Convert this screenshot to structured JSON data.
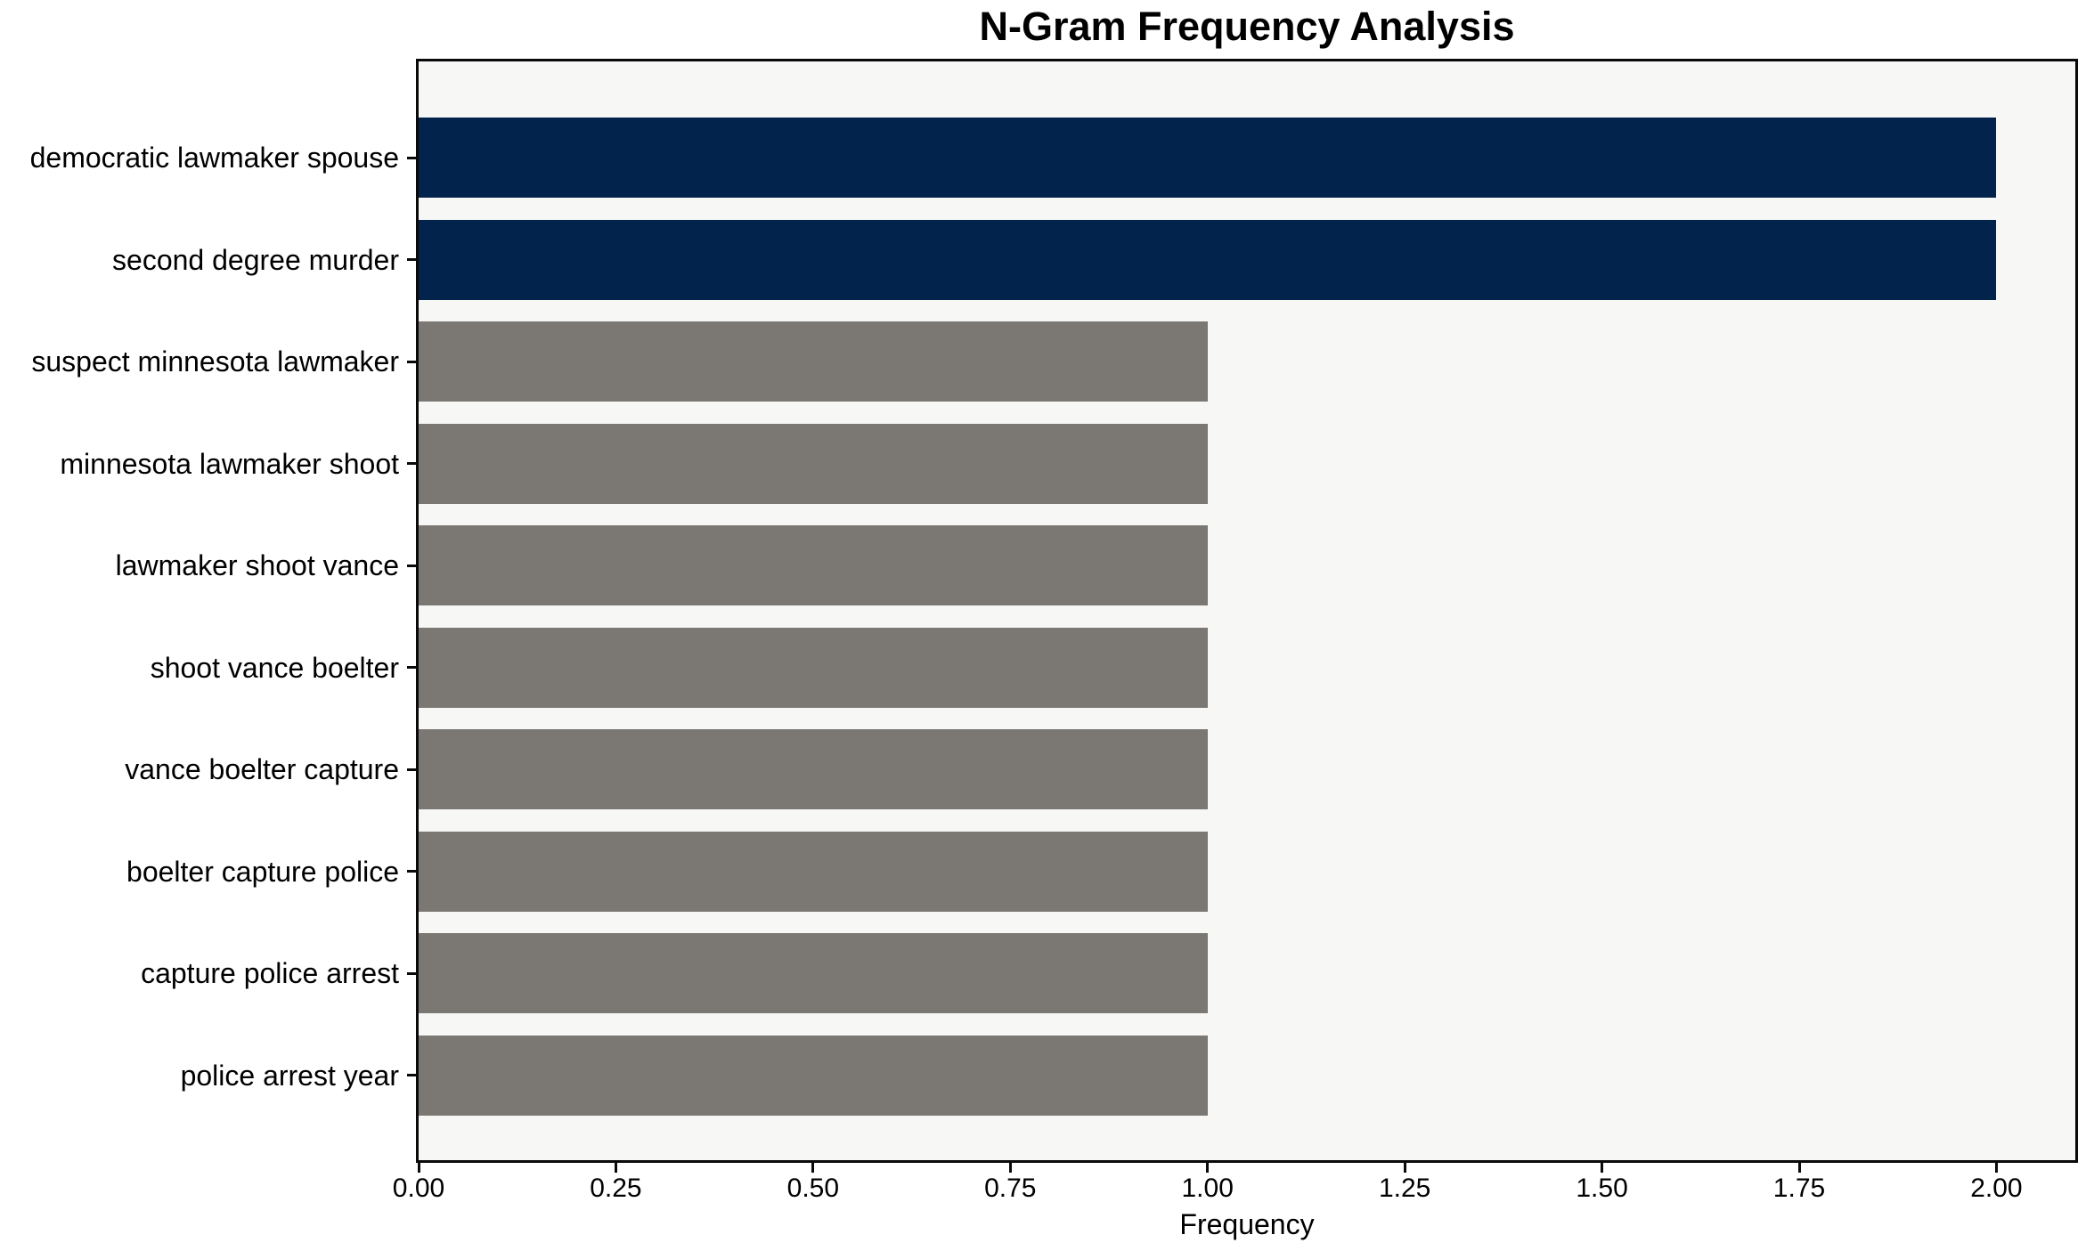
{
  "chart_data": {
    "type": "bar",
    "orientation": "horizontal",
    "title": "N-Gram Frequency Analysis",
    "xlabel": "Frequency",
    "ylabel": "",
    "categories": [
      "democratic lawmaker spouse",
      "second degree murder",
      "suspect minnesota lawmaker",
      "minnesota lawmaker shoot",
      "lawmaker shoot vance",
      "shoot vance boelter",
      "vance boelter capture",
      "boelter capture police",
      "capture police arrest",
      "police arrest year"
    ],
    "values": [
      2,
      2,
      1,
      1,
      1,
      1,
      1,
      1,
      1,
      1
    ],
    "bar_colors": [
      "#02234b",
      "#02234b",
      "#7b7873",
      "#7b7873",
      "#7b7873",
      "#7b7873",
      "#7b7873",
      "#7b7873",
      "#7b7873",
      "#7b7873"
    ],
    "xlim": [
      0,
      2.1
    ],
    "xticks": [
      0,
      0.25,
      0.5,
      0.75,
      1.0,
      1.25,
      1.5,
      1.75,
      2.0
    ],
    "xtick_labels": [
      "0.00",
      "0.25",
      "0.50",
      "0.75",
      "1.00",
      "1.25",
      "1.50",
      "1.75",
      "2.00"
    ],
    "grid": false,
    "legend": null,
    "colors": {
      "bar_highlight": "#02234b",
      "bar_default": "#7b7873",
      "plot_background": "#f7f7f6",
      "figure_background": "#ffffff",
      "axis": "#0a0a0a",
      "text": "#000000"
    }
  }
}
